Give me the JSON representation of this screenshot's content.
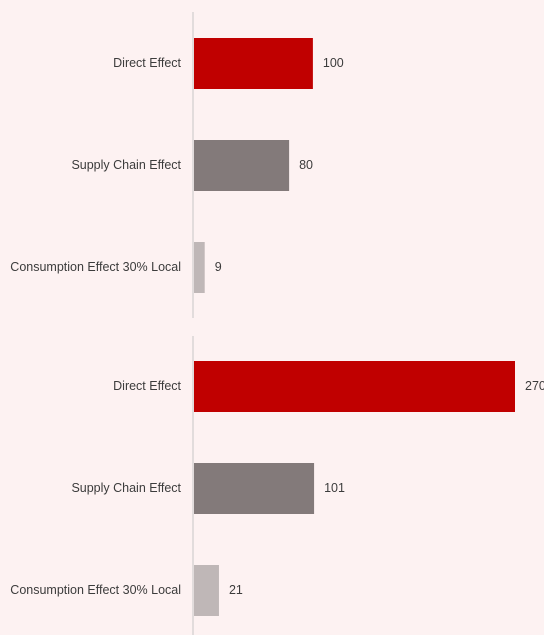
{
  "colors": {
    "background": "#fdf2f2",
    "axis": "#d9d4d4",
    "direct": "#c00000",
    "supply_chain": "#837a7a",
    "consumption": "#bfb7b7"
  },
  "chart_data": [
    {
      "type": "bar",
      "orientation": "horizontal",
      "categories": [
        "Direct Effect",
        "Supply Chain Effect",
        "Consumption Effect 30% Local"
      ],
      "values": [
        100,
        80,
        9
      ],
      "data_labels": [
        "100",
        "80",
        "9"
      ],
      "title": "",
      "xlim": [
        0,
        270
      ],
      "grid": false
    },
    {
      "type": "bar",
      "orientation": "horizontal",
      "categories": [
        "Direct Effect",
        "Supply Chain Effect",
        "Consumption Effect 30% Local"
      ],
      "values": [
        270,
        101,
        21
      ],
      "data_labels": [
        "270",
        "101",
        "21"
      ],
      "title": "",
      "xlim": [
        0,
        270
      ],
      "grid": false
    }
  ]
}
